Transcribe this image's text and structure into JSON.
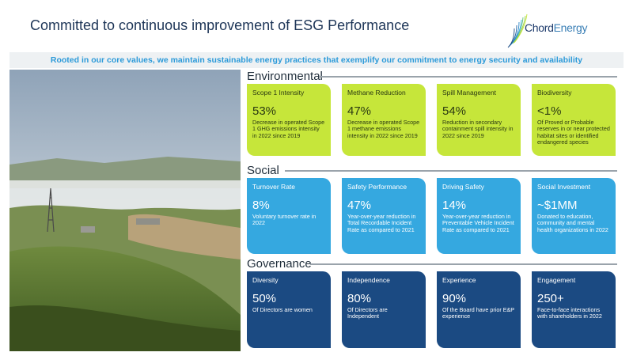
{
  "header": {
    "title": "Committed to continuous improvement of ESG Performance",
    "logo_text_bold": "Chord",
    "logo_text_light": "Energy"
  },
  "banner": "Rooted in our core values, we maintain sustainable energy practices that exemplify our commitment to energy security and availability",
  "colors": {
    "environmental": "#c6e63a",
    "social": "#35a8e0",
    "governance": "#1b4a82",
    "banner_text": "#2c9ad9"
  },
  "sections": {
    "environmental": {
      "heading": "Environmental",
      "cards": [
        {
          "title": "Scope 1 Intensity",
          "value": "53%",
          "desc": "Decrease in operated Scope 1 GHG emissions intensity in 2022 since 2019"
        },
        {
          "title": "Methane Reduction",
          "value": "47%",
          "desc": "Decrease in operated Scope 1 methane emissions intensity in 2022 since 2019"
        },
        {
          "title": "Spill Management",
          "value": "54%",
          "desc": "Reduction in secondary containment spill intensity in 2022 since 2019"
        },
        {
          "title": "Biodiversity",
          "value": "<1%",
          "desc": "Of Proved or Probable reserves in or near protected habitat sites or identified endangered species"
        }
      ]
    },
    "social": {
      "heading": "Social",
      "cards": [
        {
          "title": "Turnover Rate",
          "value": "8%",
          "desc": "Voluntary turnover rate in 2022"
        },
        {
          "title": "Safety Performance",
          "value": "47%",
          "desc": "Year-over-year reduction in Total Recordable Incident Rate as compared to 2021"
        },
        {
          "title": "Driving Safety",
          "value": "14%",
          "desc": "Year-over-year reduction in Preventable Vehicle Incident Rate as compared to 2021"
        },
        {
          "title": "Social Investment",
          "value": "~$1MM",
          "desc": "Donated to education, community and mental health organizations in 2022"
        }
      ]
    },
    "governance": {
      "heading": "Governance",
      "cards": [
        {
          "title": "Diversity",
          "value": "50%",
          "desc": "Of Directors are women"
        },
        {
          "title": "Independence",
          "value": "80%",
          "desc": "Of Directors are Independent"
        },
        {
          "title": "Experience",
          "value": "90%",
          "desc": "Of the Board have prior E&P experience"
        },
        {
          "title": "Engagement",
          "value": "250+",
          "desc": "Face-to-face interactions with shareholders in 2022"
        }
      ]
    }
  }
}
